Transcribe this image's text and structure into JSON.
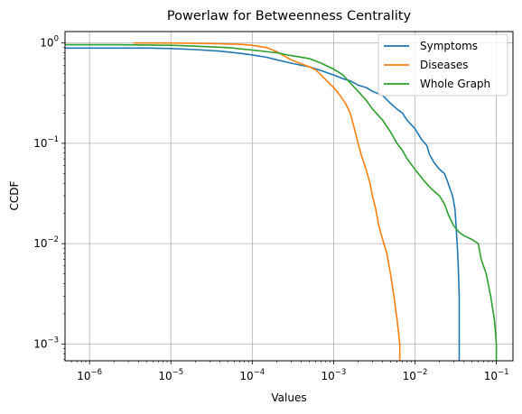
{
  "chart_data": {
    "type": "line",
    "title": "Powerlaw for Betweenness Centrality",
    "xlabel": "Values",
    "ylabel": "CCDF",
    "xscale": "log",
    "yscale": "log",
    "xlim": [
      5e-07,
      0.16
    ],
    "ylim": [
      0.00068,
      1.3
    ],
    "grid": true,
    "legend_position": "top-right",
    "x_ticks": [
      {
        "value": 1e-06,
        "base": "10",
        "exp": "−6"
      },
      {
        "value": 1e-05,
        "base": "10",
        "exp": "−5"
      },
      {
        "value": 0.0001,
        "base": "10",
        "exp": "−4"
      },
      {
        "value": 0.001,
        "base": "10",
        "exp": "−3"
      },
      {
        "value": 0.01,
        "base": "10",
        "exp": "−2"
      },
      {
        "value": 0.1,
        "base": "10",
        "exp": "−1"
      }
    ],
    "y_ticks": [
      {
        "value": 0.001,
        "base": "10",
        "exp": "−3"
      },
      {
        "value": 0.01,
        "base": "10",
        "exp": "−2"
      },
      {
        "value": 0.1,
        "base": "10",
        "exp": "−1"
      },
      {
        "value": 1,
        "base": "10",
        "exp": "0"
      }
    ],
    "series": [
      {
        "name": "Symptoms",
        "color": "#1f77b4",
        "points": [
          [
            5e-07,
            0.89
          ],
          [
            2e-06,
            0.89
          ],
          [
            5e-06,
            0.89
          ],
          [
            1e-05,
            0.88
          ],
          [
            2e-05,
            0.86
          ],
          [
            4e-05,
            0.83
          ],
          [
            7e-05,
            0.79
          ],
          [
            0.0001,
            0.76
          ],
          [
            0.00015,
            0.72
          ],
          [
            0.0002,
            0.68
          ],
          [
            0.0003,
            0.63
          ],
          [
            0.0004,
            0.6
          ],
          [
            0.0005,
            0.58
          ],
          [
            0.0007,
            0.53
          ],
          [
            0.001,
            0.48
          ],
          [
            0.0013,
            0.44
          ],
          [
            0.0016,
            0.42
          ],
          [
            0.002,
            0.38
          ],
          [
            0.0025,
            0.36
          ],
          [
            0.003,
            0.33
          ],
          [
            0.004,
            0.3
          ],
          [
            0.005,
            0.25
          ],
          [
            0.006,
            0.22
          ],
          [
            0.007,
            0.2
          ],
          [
            0.008,
            0.17
          ],
          [
            0.01,
            0.14
          ],
          [
            0.012,
            0.11
          ],
          [
            0.014,
            0.095
          ],
          [
            0.015,
            0.078
          ],
          [
            0.017,
            0.065
          ],
          [
            0.02,
            0.055
          ],
          [
            0.023,
            0.05
          ],
          [
            0.025,
            0.042
          ],
          [
            0.027,
            0.035
          ],
          [
            0.029,
            0.03
          ],
          [
            0.031,
            0.022
          ],
          [
            0.032,
            0.015
          ],
          [
            0.033,
            0.01
          ],
          [
            0.034,
            0.006
          ],
          [
            0.035,
            0.003
          ],
          [
            0.035,
            0.00068
          ]
        ]
      },
      {
        "name": "Diseases",
        "color": "#ff7f0e",
        "points": [
          [
            3.5e-06,
            1.0
          ],
          [
            1e-05,
            1.0
          ],
          [
            3e-05,
            0.99
          ],
          [
            7e-05,
            0.97
          ],
          [
            0.0001,
            0.95
          ],
          [
            0.00015,
            0.9
          ],
          [
            0.0002,
            0.82
          ],
          [
            0.00025,
            0.74
          ],
          [
            0.0003,
            0.68
          ],
          [
            0.0004,
            0.62
          ],
          [
            0.0005,
            0.58
          ],
          [
            0.0006,
            0.54
          ],
          [
            0.0007,
            0.48
          ],
          [
            0.0008,
            0.43
          ],
          [
            0.001,
            0.36
          ],
          [
            0.0012,
            0.3
          ],
          [
            0.0014,
            0.25
          ],
          [
            0.0016,
            0.2
          ],
          [
            0.0018,
            0.14
          ],
          [
            0.002,
            0.1
          ],
          [
            0.0022,
            0.075
          ],
          [
            0.0025,
            0.055
          ],
          [
            0.0028,
            0.04
          ],
          [
            0.003,
            0.03
          ],
          [
            0.0033,
            0.022
          ],
          [
            0.0036,
            0.015
          ],
          [
            0.004,
            0.011
          ],
          [
            0.0045,
            0.008
          ],
          [
            0.005,
            0.005
          ],
          [
            0.0055,
            0.003
          ],
          [
            0.006,
            0.0018
          ],
          [
            0.0065,
            0.001
          ],
          [
            0.0065,
            0.00068
          ]
        ]
      },
      {
        "name": "Whole Graph",
        "color": "#2ca02c",
        "points": [
          [
            5e-07,
            0.96
          ],
          [
            2e-06,
            0.96
          ],
          [
            1e-05,
            0.95
          ],
          [
            2e-05,
            0.93
          ],
          [
            5e-05,
            0.9
          ],
          [
            0.0001,
            0.85
          ],
          [
            0.0002,
            0.8
          ],
          [
            0.0003,
            0.75
          ],
          [
            0.0005,
            0.7
          ],
          [
            0.0007,
            0.63
          ],
          [
            0.001,
            0.55
          ],
          [
            0.0013,
            0.48
          ],
          [
            0.0016,
            0.4
          ],
          [
            0.002,
            0.33
          ],
          [
            0.0025,
            0.27
          ],
          [
            0.003,
            0.22
          ],
          [
            0.004,
            0.17
          ],
          [
            0.005,
            0.13
          ],
          [
            0.006,
            0.1
          ],
          [
            0.007,
            0.085
          ],
          [
            0.008,
            0.07
          ],
          [
            0.01,
            0.055
          ],
          [
            0.013,
            0.042
          ],
          [
            0.016,
            0.035
          ],
          [
            0.02,
            0.03
          ],
          [
            0.023,
            0.025
          ],
          [
            0.026,
            0.019
          ],
          [
            0.03,
            0.015
          ],
          [
            0.035,
            0.013
          ],
          [
            0.04,
            0.012
          ],
          [
            0.05,
            0.011
          ],
          [
            0.06,
            0.01
          ],
          [
            0.065,
            0.007
          ],
          [
            0.075,
            0.005
          ],
          [
            0.085,
            0.003
          ],
          [
            0.095,
            0.0017
          ],
          [
            0.1,
            0.001
          ],
          [
            0.1,
            0.00068
          ]
        ]
      }
    ]
  }
}
